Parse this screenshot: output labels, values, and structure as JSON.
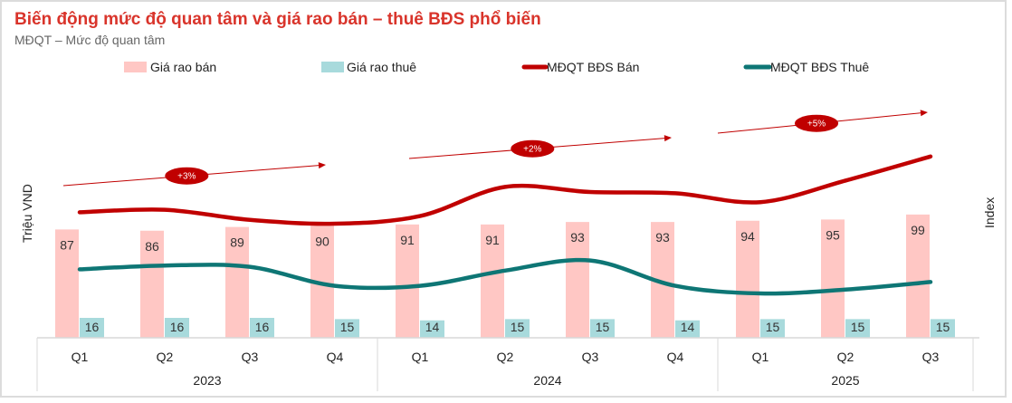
{
  "chart_data": {
    "type": "bar+line",
    "title": "Biến động mức độ quan tâm và giá rao bán – thuê BĐS phổ biến",
    "subtitle": "MĐQT – Mức độ quan tâm",
    "ylabel_left": "Triệu VND",
    "ylabel_right": "Index",
    "grid": false,
    "legend_position": "top",
    "categories": [
      "Q1",
      "Q2",
      "Q3",
      "Q4",
      "Q1",
      "Q2",
      "Q3",
      "Q4",
      "Q1",
      "Q2",
      "Q3"
    ],
    "years": [
      {
        "label": "2023",
        "count": 4
      },
      {
        "label": "2024",
        "count": 4
      },
      {
        "label": "2025",
        "count": 3
      }
    ],
    "series": [
      {
        "name": "Giá rao bán",
        "type": "bar",
        "axis": "left",
        "color": "#ffc7c4",
        "values": [
          87,
          86,
          89,
          90,
          91,
          91,
          93,
          93,
          94,
          95,
          99
        ]
      },
      {
        "name": "Giá rao thuê",
        "type": "bar",
        "axis": "left",
        "color": "#a8dadc",
        "values": [
          16,
          16,
          16,
          15,
          14,
          15,
          15,
          14,
          15,
          15,
          15
        ]
      },
      {
        "name": "MĐQT BĐS Bán",
        "type": "line",
        "axis": "right",
        "color": "#c00000",
        "values": [
          99,
          101,
          93,
          90,
          96,
          119,
          115,
          114,
          107,
          124,
          143
        ]
      },
      {
        "name": "MĐQT BĐS Thuê",
        "type": "line",
        "axis": "right",
        "color": "#0e7675",
        "values": [
          54,
          57,
          56,
          41,
          41,
          53,
          61,
          41,
          35,
          38,
          44
        ]
      }
    ],
    "annotations": [
      {
        "text": "+3%",
        "period": "2023"
      },
      {
        "text": "+2%",
        "period": "2024"
      },
      {
        "text": "+5%",
        "period": "2025"
      }
    ],
    "annotation_color": "#c00000"
  }
}
